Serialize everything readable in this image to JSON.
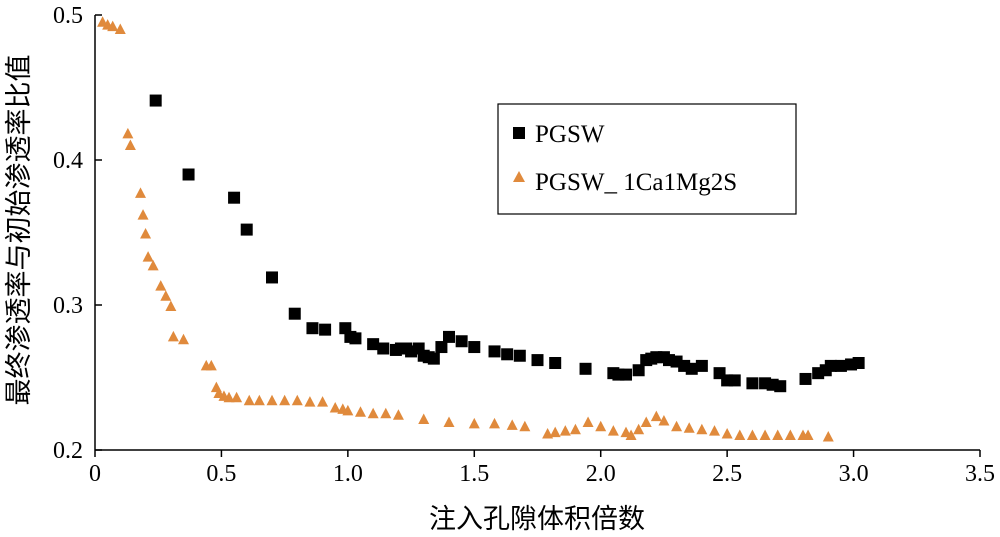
{
  "chart_data": {
    "type": "scatter",
    "title": "",
    "xlabel": "注入孔隙体积倍数",
    "ylabel": "最终渗透率与初始渗透率比值",
    "xlim": [
      0,
      3.5
    ],
    "ylim": [
      0.2,
      0.5
    ],
    "x_ticks": [
      "0",
      "0.5",
      "1.0",
      "1.5",
      "2.0",
      "2.5",
      "3.0",
      "3.5"
    ],
    "y_ticks": [
      "0.2",
      "0.3",
      "0.4",
      "0.5"
    ],
    "grid": false,
    "legend_position": "top-right",
    "series": [
      {
        "name": "PGSW",
        "marker": "square",
        "color": "#000000",
        "points": [
          [
            0.24,
            0.441
          ],
          [
            0.37,
            0.39
          ],
          [
            0.55,
            0.374
          ],
          [
            0.6,
            0.352
          ],
          [
            0.7,
            0.319
          ],
          [
            0.79,
            0.294
          ],
          [
            0.86,
            0.284
          ],
          [
            0.91,
            0.283
          ],
          [
            0.99,
            0.284
          ],
          [
            1.01,
            0.278
          ],
          [
            1.03,
            0.277
          ],
          [
            1.1,
            0.273
          ],
          [
            1.14,
            0.27
          ],
          [
            1.19,
            0.269
          ],
          [
            1.21,
            0.27
          ],
          [
            1.23,
            0.27
          ],
          [
            1.25,
            0.268
          ],
          [
            1.28,
            0.27
          ],
          [
            1.3,
            0.265
          ],
          [
            1.32,
            0.264
          ],
          [
            1.34,
            0.263
          ],
          [
            1.37,
            0.271
          ],
          [
            1.4,
            0.278
          ],
          [
            1.45,
            0.275
          ],
          [
            1.5,
            0.271
          ],
          [
            1.58,
            0.268
          ],
          [
            1.63,
            0.266
          ],
          [
            1.68,
            0.265
          ],
          [
            1.75,
            0.262
          ],
          [
            1.82,
            0.26
          ],
          [
            1.94,
            0.256
          ],
          [
            2.05,
            0.253
          ],
          [
            2.07,
            0.252
          ],
          [
            2.1,
            0.252
          ],
          [
            2.15,
            0.255
          ],
          [
            2.18,
            0.262
          ],
          [
            2.2,
            0.263
          ],
          [
            2.22,
            0.264
          ],
          [
            2.25,
            0.264
          ],
          [
            2.27,
            0.262
          ],
          [
            2.3,
            0.261
          ],
          [
            2.33,
            0.258
          ],
          [
            2.36,
            0.256
          ],
          [
            2.4,
            0.258
          ],
          [
            2.47,
            0.253
          ],
          [
            2.5,
            0.248
          ],
          [
            2.53,
            0.248
          ],
          [
            2.6,
            0.246
          ],
          [
            2.65,
            0.246
          ],
          [
            2.68,
            0.245
          ],
          [
            2.71,
            0.244
          ],
          [
            2.81,
            0.249
          ],
          [
            2.86,
            0.253
          ],
          [
            2.89,
            0.255
          ],
          [
            2.91,
            0.258
          ],
          [
            2.95,
            0.258
          ],
          [
            2.99,
            0.259
          ],
          [
            3.02,
            0.26
          ]
        ]
      },
      {
        "name": "PGSW_ 1Ca1Mg2S",
        "marker": "triangle",
        "color": "#E08A3C",
        "points": [
          [
            0.03,
            0.495
          ],
          [
            0.05,
            0.493
          ],
          [
            0.07,
            0.492
          ],
          [
            0.1,
            0.49
          ],
          [
            0.13,
            0.418
          ],
          [
            0.14,
            0.41
          ],
          [
            0.18,
            0.377
          ],
          [
            0.19,
            0.362
          ],
          [
            0.2,
            0.349
          ],
          [
            0.21,
            0.333
          ],
          [
            0.23,
            0.327
          ],
          [
            0.26,
            0.313
          ],
          [
            0.28,
            0.306
          ],
          [
            0.3,
            0.299
          ],
          [
            0.31,
            0.278
          ],
          [
            0.35,
            0.276
          ],
          [
            0.44,
            0.258
          ],
          [
            0.46,
            0.258
          ],
          [
            0.48,
            0.243
          ],
          [
            0.49,
            0.239
          ],
          [
            0.51,
            0.237
          ],
          [
            0.53,
            0.236
          ],
          [
            0.56,
            0.236
          ],
          [
            0.61,
            0.234
          ],
          [
            0.65,
            0.234
          ],
          [
            0.7,
            0.234
          ],
          [
            0.75,
            0.234
          ],
          [
            0.8,
            0.234
          ],
          [
            0.85,
            0.233
          ],
          [
            0.9,
            0.233
          ],
          [
            0.95,
            0.229
          ],
          [
            0.98,
            0.228
          ],
          [
            1.0,
            0.227
          ],
          [
            1.05,
            0.226
          ],
          [
            1.1,
            0.225
          ],
          [
            1.15,
            0.225
          ],
          [
            1.2,
            0.224
          ],
          [
            1.3,
            0.221
          ],
          [
            1.4,
            0.219
          ],
          [
            1.5,
            0.218
          ],
          [
            1.58,
            0.218
          ],
          [
            1.65,
            0.217
          ],
          [
            1.7,
            0.216
          ],
          [
            1.79,
            0.211
          ],
          [
            1.82,
            0.212
          ],
          [
            1.86,
            0.213
          ],
          [
            1.9,
            0.214
          ],
          [
            1.95,
            0.219
          ],
          [
            2.0,
            0.216
          ],
          [
            2.05,
            0.213
          ],
          [
            2.1,
            0.212
          ],
          [
            2.12,
            0.21
          ],
          [
            2.15,
            0.214
          ],
          [
            2.18,
            0.219
          ],
          [
            2.22,
            0.223
          ],
          [
            2.25,
            0.22
          ],
          [
            2.3,
            0.216
          ],
          [
            2.35,
            0.215
          ],
          [
            2.4,
            0.214
          ],
          [
            2.45,
            0.213
          ],
          [
            2.5,
            0.211
          ],
          [
            2.55,
            0.21
          ],
          [
            2.6,
            0.21
          ],
          [
            2.65,
            0.21
          ],
          [
            2.7,
            0.21
          ],
          [
            2.75,
            0.21
          ],
          [
            2.8,
            0.21
          ],
          [
            2.82,
            0.21
          ],
          [
            2.9,
            0.209
          ]
        ]
      }
    ]
  }
}
